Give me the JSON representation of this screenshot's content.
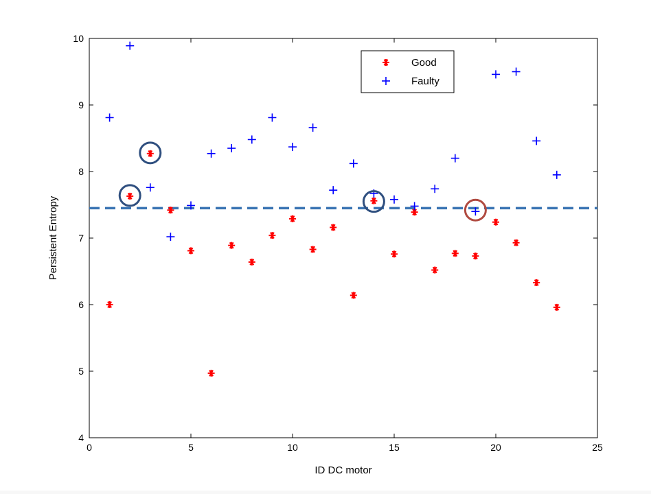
{
  "chart_data": {
    "type": "scatter",
    "title": "",
    "xlabel": "ID DC motor",
    "ylabel": "Persistent Entropy",
    "xlim": [
      0,
      25
    ],
    "ylim": [
      4,
      10
    ],
    "xticks": [
      "0",
      "5",
      "10",
      "15",
      "20",
      "25"
    ],
    "yticks": [
      "4",
      "5",
      "6",
      "7",
      "8",
      "9",
      "10"
    ],
    "grid": false,
    "legend_position": "top-right",
    "series": [
      {
        "name": "Good",
        "marker": "asterisk",
        "color": "#ff0000",
        "x": [
          1,
          2,
          3,
          4,
          5,
          6,
          7,
          8,
          9,
          10,
          11,
          12,
          13,
          14,
          15,
          16,
          17,
          18,
          19,
          20,
          21,
          22,
          23
        ],
        "y": [
          6.0,
          7.63,
          8.27,
          7.42,
          6.81,
          4.97,
          6.89,
          6.64,
          7.04,
          7.29,
          6.83,
          7.16,
          6.14,
          7.56,
          6.76,
          7.39,
          6.52,
          6.77,
          6.73,
          7.24,
          6.93,
          6.33,
          5.96
        ]
      },
      {
        "name": "Faulty",
        "marker": "plus",
        "color": "#0000ff",
        "x": [
          1,
          2,
          3,
          4,
          5,
          6,
          7,
          8,
          9,
          10,
          11,
          12,
          13,
          14,
          15,
          16,
          17,
          18,
          19,
          20,
          21,
          22,
          23
        ],
        "y": [
          8.81,
          9.89,
          7.76,
          7.02,
          7.49,
          8.27,
          8.35,
          8.48,
          8.81,
          8.37,
          8.66,
          7.72,
          8.12,
          7.67,
          7.58,
          7.48,
          7.74,
          8.2,
          7.4,
          9.46,
          9.5,
          8.46,
          7.95
        ]
      }
    ],
    "threshold": {
      "y": 7.45,
      "style": "dashed",
      "color": "#3a74b3"
    },
    "highlights": [
      {
        "x": 2,
        "y": 7.64,
        "color": "#2f4f7f"
      },
      {
        "x": 3,
        "y": 8.28,
        "color": "#2f4f7f"
      },
      {
        "x": 14,
        "y": 7.55,
        "color": "#2f4f7f"
      },
      {
        "x": 19,
        "y": 7.42,
        "color": "#b04a40"
      }
    ]
  }
}
